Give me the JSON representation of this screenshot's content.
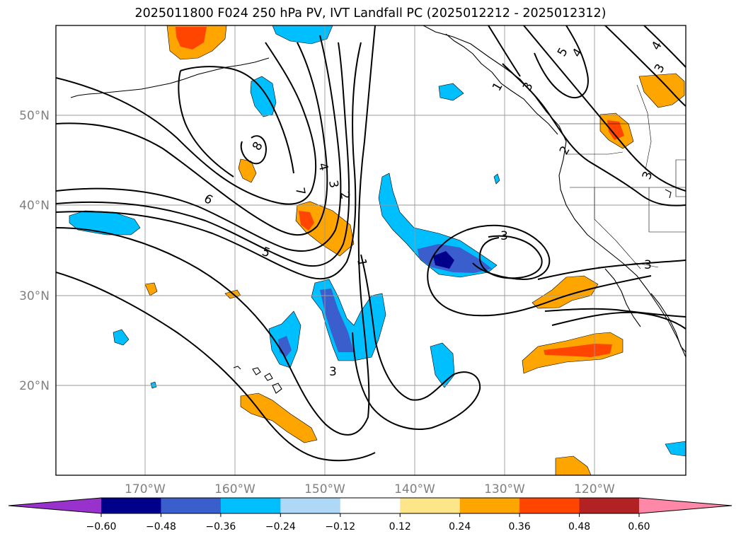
{
  "title": "2025011800 F024 250 hPa PV, IVT Landfall PC (2025012212 - 2025012312)",
  "map": {
    "lat_labels": [
      "50°N",
      "40°N",
      "30°N",
      "20°N"
    ],
    "lon_labels": [
      "170°W",
      "160°W",
      "150°W",
      "140°W",
      "130°W",
      "120°W"
    ],
    "contour_labels": [
      {
        "text": "8"
      },
      {
        "text": "7"
      },
      {
        "text": "6"
      },
      {
        "text": "5"
      },
      {
        "text": "4"
      },
      {
        "text": "3"
      },
      {
        "text": "2"
      },
      {
        "text": "1"
      },
      {
        "text": "3"
      },
      {
        "text": "3"
      },
      {
        "text": "3"
      },
      {
        "text": "3"
      },
      {
        "text": "3"
      },
      {
        "text": "5"
      },
      {
        "text": "4"
      },
      {
        "text": "4"
      },
      {
        "text": "3"
      },
      {
        "text": "2"
      },
      {
        "text": "1"
      }
    ],
    "grid": true,
    "coastlines": true
  },
  "colorbar": {
    "colors": [
      "#9932cc",
      "#00008b",
      "#3a5fcd",
      "#00bfff",
      "#add8f6",
      "#ffffff",
      "#fde68a",
      "#ffa500",
      "#ff4500",
      "#b22222",
      "#ff87a8"
    ],
    "ticks": [
      "−0.60",
      "−0.48",
      "−0.36",
      "−0.24",
      "−0.12",
      "0.12",
      "0.24",
      "0.36",
      "0.48",
      "0.60"
    ]
  }
}
